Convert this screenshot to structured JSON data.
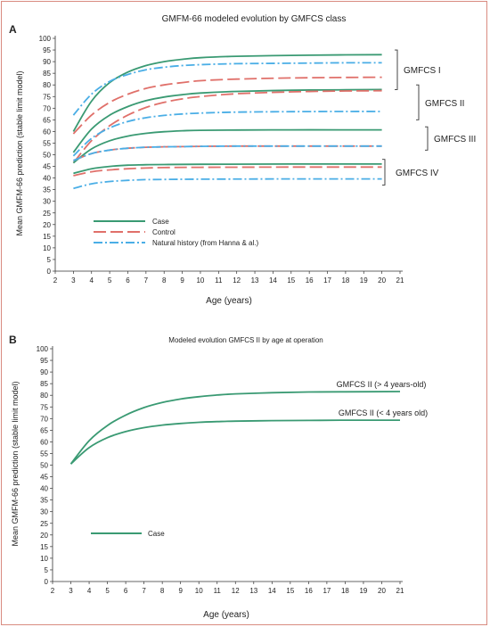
{
  "chart_data": [
    {
      "panel": "A",
      "type": "line",
      "title": "GMFM-66 modeled evolution by GMFCS class",
      "xlabel": "Age (years)",
      "ylabel": "Mean GMFM-66 prediction (stable limit model)",
      "xlim": [
        2,
        21
      ],
      "ylim": [
        0,
        100
      ],
      "xticks": [
        "2",
        "3",
        "4",
        "5",
        "6",
        "7",
        "8",
        "9",
        "10",
        "11",
        "12",
        "13",
        "14",
        "15",
        "16",
        "17",
        "18",
        "19",
        "20",
        "21"
      ],
      "yticks": [
        "0",
        "5",
        "10",
        "15",
        "20",
        "25",
        "30",
        "35",
        "40",
        "45",
        "50",
        "55",
        "60",
        "65",
        "70",
        "75",
        "80",
        "85",
        "90",
        "95",
        "100"
      ],
      "legend": {
        "placement": "bottom-left",
        "entries": [
          "Case",
          "Control",
          "Natural history (from Hanna & al.)"
        ]
      },
      "colors": {
        "case": "#3a9a73",
        "control": "#e0706a",
        "natural": "#4aaee6"
      },
      "group_labels": [
        "GMFCS I",
        "GMFCS II",
        "GMFCS III",
        "GMFCS IV"
      ],
      "series": [
        {
          "group": "GMFCS I",
          "kind": "case",
          "points": [
            [
              3,
              60
            ],
            [
              4,
              73
            ],
            [
              5,
              81
            ],
            [
              6,
              85.5
            ],
            [
              7,
              88.3
            ],
            [
              8,
              90
            ],
            [
              9,
              91
            ],
            [
              10,
              91.7
            ],
            [
              12,
              92.3
            ],
            [
              15,
              92.7
            ],
            [
              18,
              92.9
            ],
            [
              20,
              93
            ]
          ]
        },
        {
          "group": "GMFCS I",
          "kind": "control",
          "points": [
            [
              3,
              59
            ],
            [
              4,
              67
            ],
            [
              5,
              72.5
            ],
            [
              6,
              76
            ],
            [
              7,
              78.5
            ],
            [
              8,
              80
            ],
            [
              9,
              81
            ],
            [
              10,
              81.8
            ],
            [
              12,
              82.5
            ],
            [
              15,
              83
            ],
            [
              18,
              83.2
            ],
            [
              20,
              83.3
            ]
          ]
        },
        {
          "group": "GMFCS I",
          "kind": "natural",
          "points": [
            [
              3,
              67
            ],
            [
              4,
              76
            ],
            [
              5,
              81.5
            ],
            [
              6,
              84.5
            ],
            [
              7,
              86.5
            ],
            [
              8,
              87.6
            ],
            [
              9,
              88.3
            ],
            [
              10,
              88.7
            ],
            [
              12,
              89.1
            ],
            [
              15,
              89.3
            ],
            [
              18,
              89.5
            ],
            [
              20,
              89.5
            ]
          ]
        },
        {
          "group": "GMFCS II",
          "kind": "case",
          "points": [
            [
              3,
              51
            ],
            [
              4,
              61
            ],
            [
              5,
              67
            ],
            [
              6,
              70.7
            ],
            [
              7,
              73.2
            ],
            [
              8,
              74.8
            ],
            [
              9,
              75.8
            ],
            [
              10,
              76.5
            ],
            [
              12,
              77.2
            ],
            [
              15,
              77.7
            ],
            [
              18,
              77.9
            ],
            [
              20,
              78
            ]
          ]
        },
        {
          "group": "GMFCS II",
          "kind": "control",
          "points": [
            [
              3,
              46.5
            ],
            [
              4,
              56
            ],
            [
              5,
              62.5
            ],
            [
              6,
              67
            ],
            [
              7,
              70.3
            ],
            [
              8,
              72.5
            ],
            [
              9,
              74
            ],
            [
              10,
              75
            ],
            [
              12,
              76.2
            ],
            [
              15,
              77
            ],
            [
              18,
              77.4
            ],
            [
              20,
              77.5
            ]
          ]
        },
        {
          "group": "GMFCS II",
          "kind": "natural",
          "points": [
            [
              3,
              49.5
            ],
            [
              4,
              57
            ],
            [
              5,
              61.5
            ],
            [
              6,
              64.3
            ],
            [
              7,
              65.9
            ],
            [
              8,
              66.9
            ],
            [
              9,
              67.5
            ],
            [
              10,
              67.9
            ],
            [
              12,
              68.3
            ],
            [
              15,
              68.5
            ],
            [
              18,
              68.6
            ],
            [
              20,
              68.6
            ]
          ]
        },
        {
          "group": "GMFCS III",
          "kind": "case",
          "points": [
            [
              3,
              46.5
            ],
            [
              4,
              52.5
            ],
            [
              5,
              56
            ],
            [
              6,
              58
            ],
            [
              7,
              59.2
            ],
            [
              8,
              59.9
            ],
            [
              9,
              60.3
            ],
            [
              10,
              60.5
            ],
            [
              12,
              60.6
            ],
            [
              15,
              60.7
            ],
            [
              18,
              60.7
            ],
            [
              20,
              60.7
            ]
          ]
        },
        {
          "group": "GMFCS III",
          "kind": "control",
          "points": [
            [
              3,
              47.5
            ],
            [
              4,
              50.5
            ],
            [
              5,
              52
            ],
            [
              6,
              52.8
            ],
            [
              7,
              53.2
            ],
            [
              8,
              53.4
            ],
            [
              9,
              53.5
            ],
            [
              10,
              53.6
            ],
            [
              12,
              53.7
            ],
            [
              15,
              53.7
            ],
            [
              18,
              53.7
            ],
            [
              20,
              53.7
            ]
          ]
        },
        {
          "group": "GMFCS III",
          "kind": "natural",
          "points": [
            [
              3,
              47.5
            ],
            [
              4,
              50.5
            ],
            [
              5,
              52
            ],
            [
              6,
              52.8
            ],
            [
              7,
              53.2
            ],
            [
              8,
              53.4
            ],
            [
              9,
              53.5
            ],
            [
              10,
              53.6
            ],
            [
              12,
              53.7
            ],
            [
              15,
              53.7
            ],
            [
              18,
              53.7
            ],
            [
              20,
              53.7
            ]
          ]
        },
        {
          "group": "GMFCS IV",
          "kind": "case",
          "points": [
            [
              3,
              42
            ],
            [
              4,
              44
            ],
            [
              5,
              45
            ],
            [
              6,
              45.5
            ],
            [
              7,
              45.7
            ],
            [
              8,
              45.8
            ],
            [
              10,
              45.9
            ],
            [
              15,
              46
            ],
            [
              20,
              46
            ]
          ]
        },
        {
          "group": "GMFCS IV",
          "kind": "control",
          "points": [
            [
              3,
              41
            ],
            [
              4,
              42.7
            ],
            [
              5,
              43.5
            ],
            [
              6,
              44
            ],
            [
              7,
              44.3
            ],
            [
              8,
              44.5
            ],
            [
              10,
              44.6
            ],
            [
              15,
              44.7
            ],
            [
              20,
              44.7
            ]
          ]
        },
        {
          "group": "GMFCS IV",
          "kind": "natural",
          "points": [
            [
              3,
              35.5
            ],
            [
              4,
              37.5
            ],
            [
              5,
              38.5
            ],
            [
              6,
              39
            ],
            [
              7,
              39.3
            ],
            [
              8,
              39.4
            ],
            [
              10,
              39.5
            ],
            [
              15,
              39.6
            ],
            [
              20,
              39.6
            ]
          ]
        }
      ]
    },
    {
      "panel": "B",
      "type": "line",
      "title": "Modeled evolution GMFCS II by age at operation",
      "xlabel": "Age (years)",
      "ylabel": "Mean GMFM-66 prediction (stable limit model)",
      "xlim": [
        2,
        21
      ],
      "ylim": [
        0,
        100
      ],
      "xticks": [
        "2",
        "3",
        "4",
        "5",
        "6",
        "7",
        "8",
        "9",
        "10",
        "11",
        "12",
        "13",
        "14",
        "15",
        "16",
        "17",
        "18",
        "19",
        "20",
        "21"
      ],
      "yticks": [
        "0",
        "5",
        "10",
        "15",
        "20",
        "25",
        "30",
        "35",
        "40",
        "45",
        "50",
        "55",
        "60",
        "65",
        "70",
        "75",
        "80",
        "85",
        "90",
        "95",
        "100"
      ],
      "legend": {
        "placement": "bottom-left",
        "entries": [
          "Case"
        ]
      },
      "colors": {
        "case": "#3a9a73"
      },
      "series": [
        {
          "name": "GMFCS II (> 4 years-old)",
          "kind": "case",
          "points": [
            [
              3,
              50.5
            ],
            [
              4,
              60.5
            ],
            [
              5,
              67
            ],
            [
              6,
              71.5
            ],
            [
              7,
              74.7
            ],
            [
              8,
              76.9
            ],
            [
              9,
              78.4
            ],
            [
              10,
              79.4
            ],
            [
              11,
              80.1
            ],
            [
              12,
              80.6
            ],
            [
              14,
              81.1
            ],
            [
              16,
              81.4
            ],
            [
              18,
              81.5
            ],
            [
              21,
              81.6
            ]
          ]
        },
        {
          "name": "GMFCS II (< 4 years old)",
          "kind": "case",
          "points": [
            [
              3,
              50.5
            ],
            [
              4,
              57.5
            ],
            [
              5,
              61.8
            ],
            [
              6,
              64.4
            ],
            [
              7,
              66.1
            ],
            [
              8,
              67.2
            ],
            [
              9,
              67.9
            ],
            [
              10,
              68.4
            ],
            [
              11,
              68.7
            ],
            [
              12,
              68.9
            ],
            [
              14,
              69.1
            ],
            [
              16,
              69.2
            ],
            [
              18,
              69.3
            ],
            [
              21,
              69.3
            ]
          ]
        }
      ]
    }
  ]
}
